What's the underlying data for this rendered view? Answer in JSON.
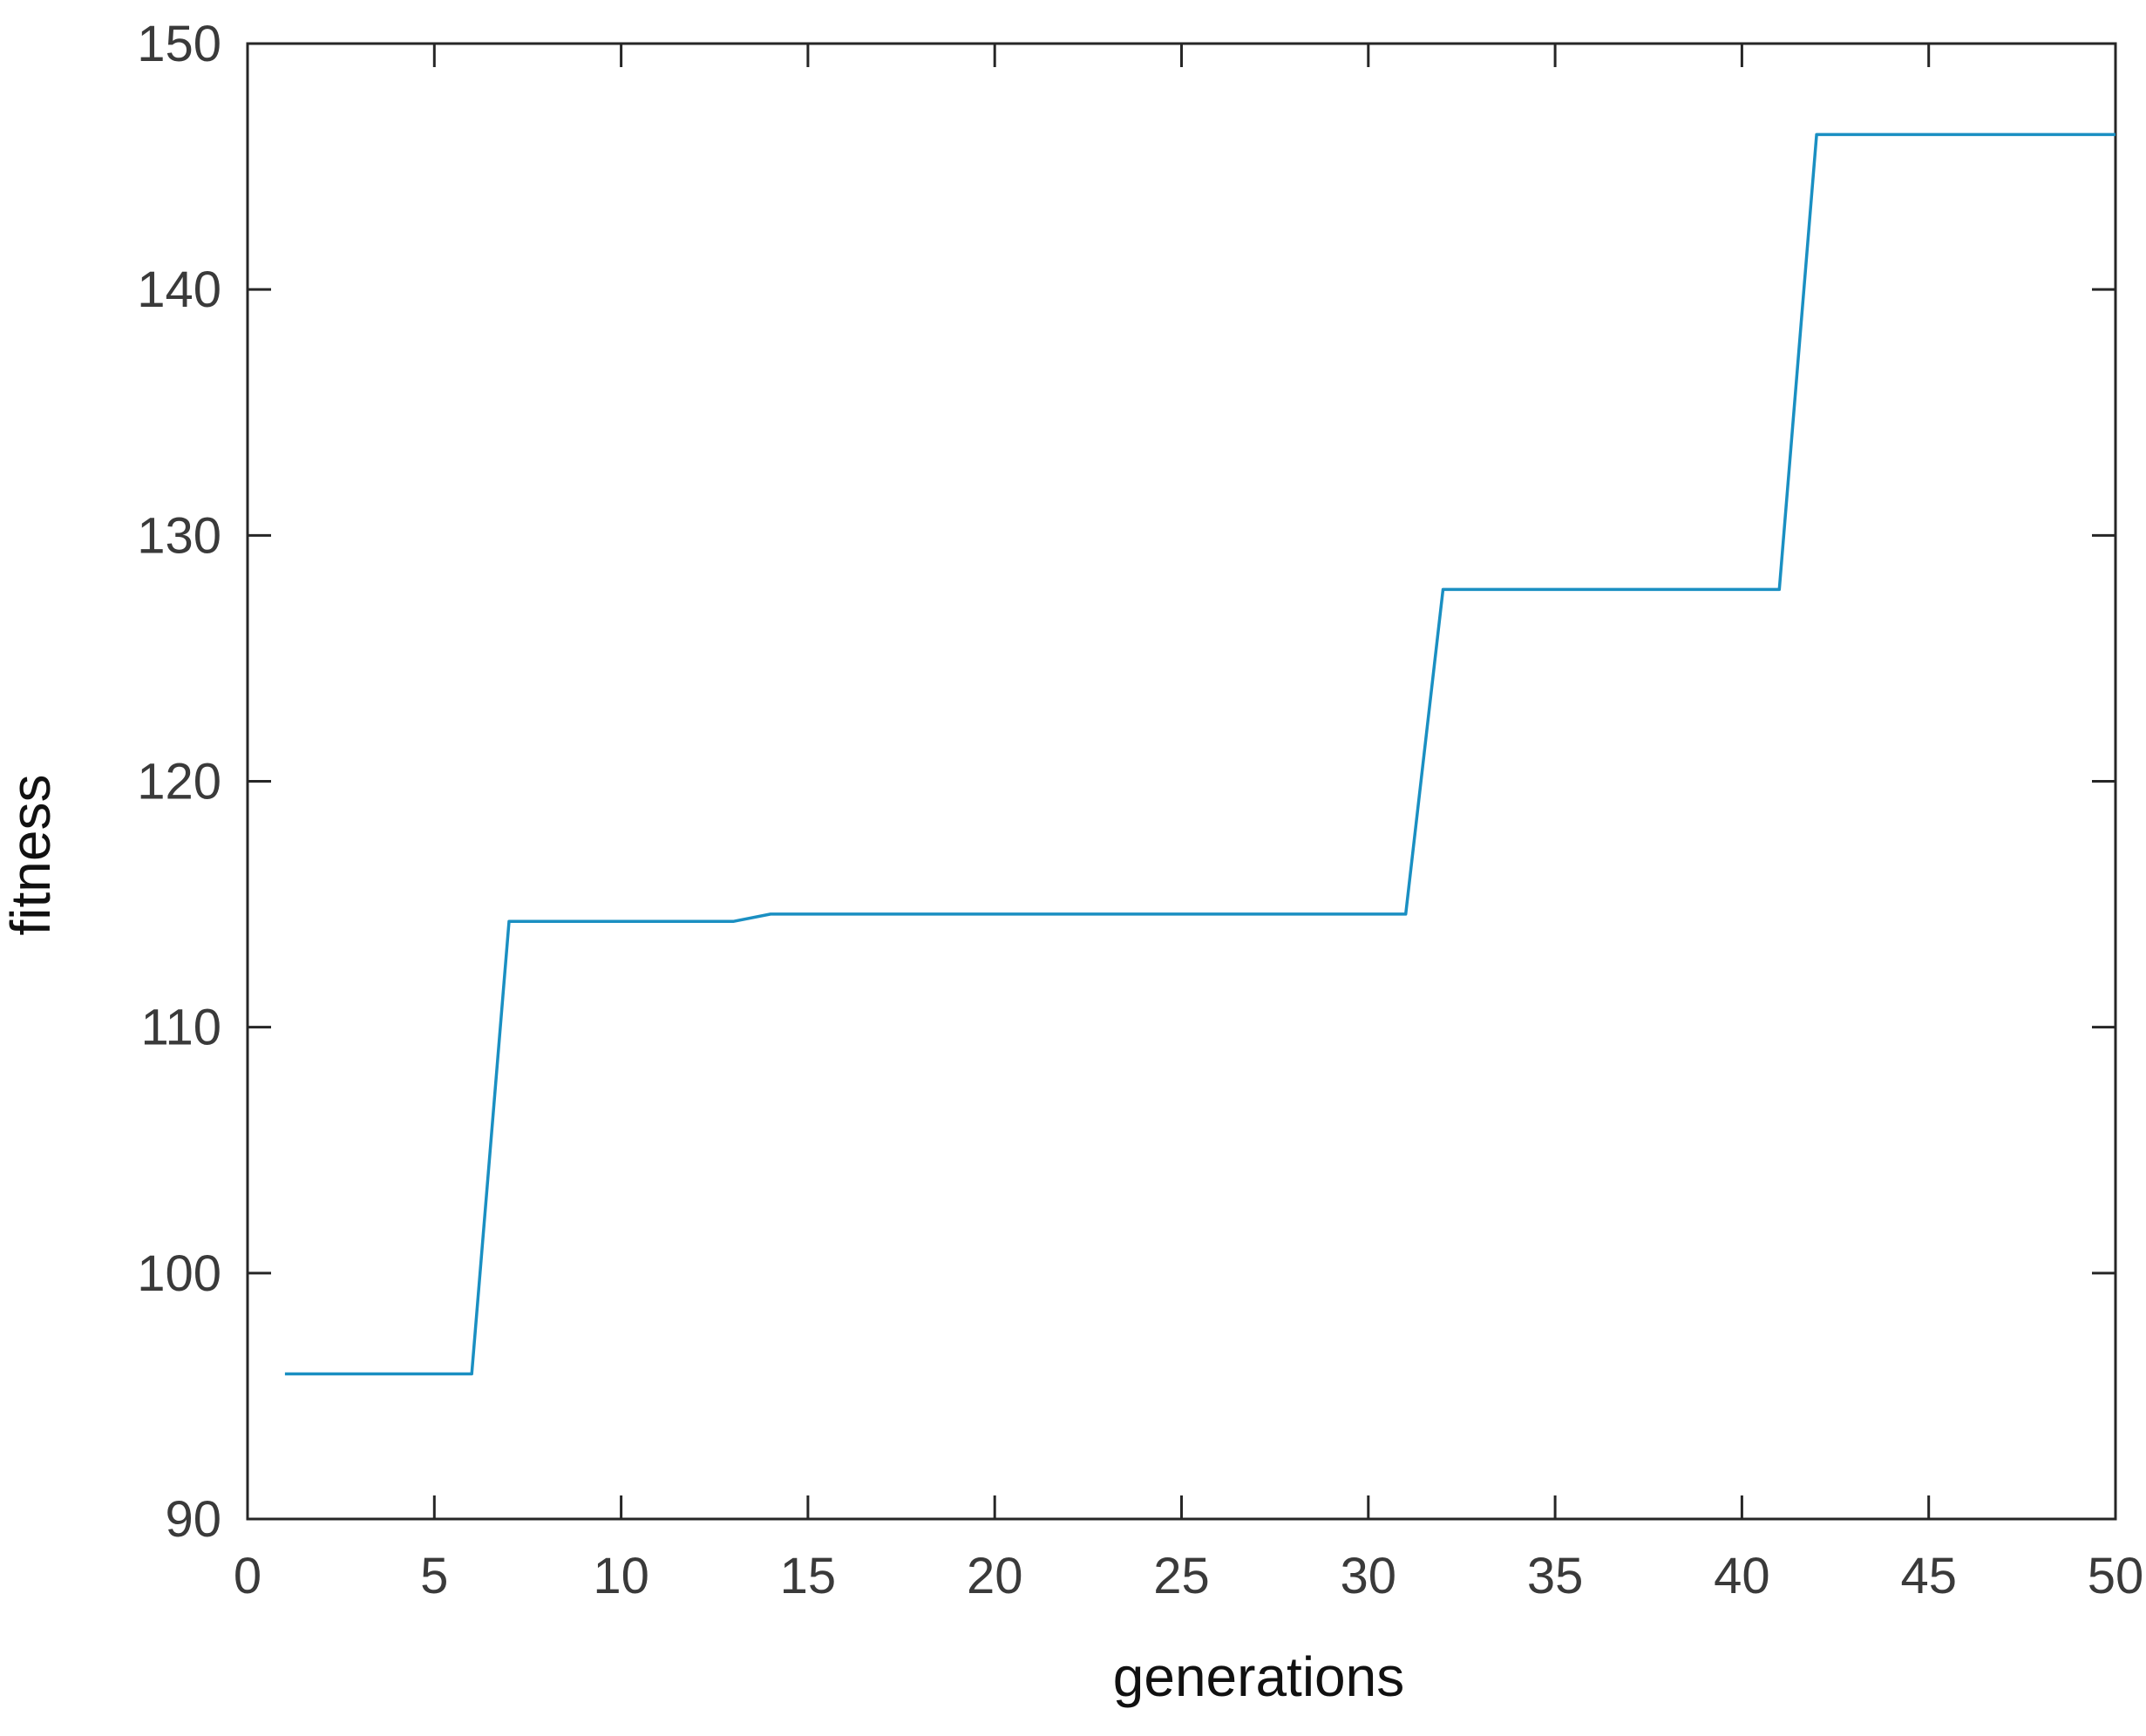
{
  "chart_data": {
    "type": "line",
    "title": "",
    "xlabel": "generations",
    "ylabel": "fitness",
    "xlim": [
      0,
      50
    ],
    "ylim": [
      90,
      150
    ],
    "xticks": [
      0,
      5,
      10,
      15,
      20,
      25,
      30,
      35,
      40,
      45,
      50
    ],
    "yticks": [
      90,
      100,
      110,
      120,
      130,
      140,
      150
    ],
    "grid": false,
    "legend": "none",
    "series": [
      {
        "color": "#1a8fc2",
        "x": [
          1,
          2,
          3,
          4,
          5,
          6,
          7,
          8,
          9,
          10,
          11,
          12,
          13,
          14,
          15,
          16,
          17,
          18,
          19,
          20,
          21,
          22,
          23,
          24,
          25,
          26,
          27,
          28,
          29,
          30,
          31,
          32,
          33,
          34,
          35,
          36,
          37,
          38,
          39,
          40,
          41,
          42,
          43,
          44,
          45,
          46,
          47,
          48,
          49,
          50
        ],
        "y": [
          95.9,
          95.9,
          95.9,
          95.9,
          95.9,
          95.9,
          114.3,
          114.3,
          114.3,
          114.3,
          114.3,
          114.3,
          114.3,
          114.6,
          114.6,
          114.6,
          114.6,
          114.6,
          114.6,
          114.6,
          114.6,
          114.6,
          114.6,
          114.6,
          114.6,
          114.6,
          114.6,
          114.6,
          114.6,
          114.6,
          114.6,
          127.8,
          127.8,
          127.8,
          127.8,
          127.8,
          127.8,
          127.8,
          127.8,
          127.8,
          127.8,
          146.3,
          146.3,
          146.3,
          146.3,
          146.3,
          146.3,
          146.3,
          146.3,
          146.3
        ]
      }
    ],
    "axis_color": "#262626",
    "text_color": "#3a3a3a"
  }
}
